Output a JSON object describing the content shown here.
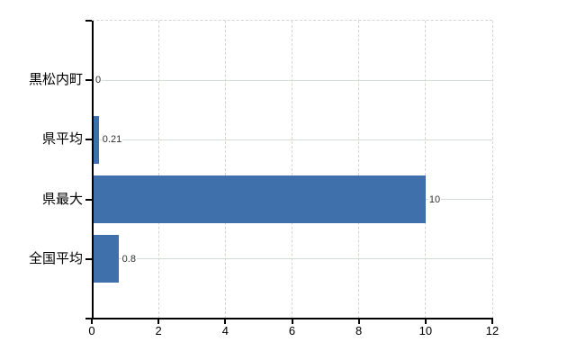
{
  "chart_data": {
    "type": "bar",
    "orientation": "horizontal",
    "title": "",
    "xlabel": "",
    "ylabel": "",
    "categories": [
      "黒松内町",
      "県平均",
      "県最大",
      "全国平均"
    ],
    "values": [
      0,
      0.21,
      10,
      0.8
    ],
    "value_labels": [
      "0",
      "0.21",
      "10",
      "0.8"
    ],
    "xlim": [
      0,
      12
    ],
    "xticks": [
      0,
      2,
      4,
      6,
      8,
      10,
      12
    ],
    "xtick_labels": [
      "0",
      "2",
      "4",
      "6",
      "8",
      "10",
      "12"
    ],
    "bar_color": "#3f70ab",
    "axis_color": "#000000",
    "vertical_grid_color": "#d9d3d1",
    "horizontal_grid_color": "#d5dcd5",
    "value_label_color": "#2f2f2f",
    "grid": {
      "vertical": "dashed",
      "horizontal_category_lines": true,
      "top_border": "dashed"
    },
    "legend": "none",
    "background": "#ffffff"
  }
}
